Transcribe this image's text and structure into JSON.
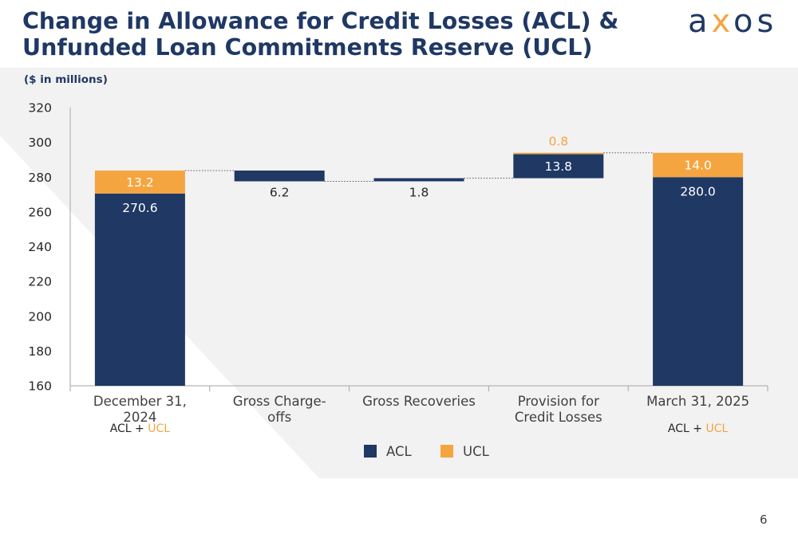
{
  "title": {
    "line1": "Change in Allowance for Credit Losses (ACL) &",
    "line2": "Unfunded Loan Commitments Reserve (UCL)"
  },
  "unit_note": "($ in millions)",
  "logo": {
    "part1": "a",
    "part2": "x",
    "part3": "os"
  },
  "page_number": "6",
  "colors": {
    "acl": "#1f3864",
    "ucl": "#f5a540",
    "title": "#1f3864",
    "background_shape": "#f2f2f2"
  },
  "chart_data": {
    "type": "bar",
    "subtype": "waterfall",
    "categories": [
      [
        "December 31,",
        "2024"
      ],
      [
        "Gross Charge-",
        "offs"
      ],
      [
        "Gross Recoveries"
      ],
      [
        "Provision for",
        "Credit Losses"
      ],
      [
        "March 31, 2025"
      ]
    ],
    "ylim": [
      160,
      320
    ],
    "yticks": [
      160,
      180,
      200,
      220,
      240,
      260,
      280,
      300,
      320
    ],
    "grid": false,
    "legend_position": "bottom",
    "series": [
      {
        "name": "ACL"
      },
      {
        "name": "UCL"
      }
    ],
    "bars": [
      {
        "segments": [
          {
            "series": "ACL",
            "from": 160,
            "to": 270.6,
            "label": "270.6",
            "label_pos": "inside-top"
          },
          {
            "series": "UCL",
            "from": 270.6,
            "to": 283.8,
            "label": "13.2",
            "label_pos": "inside"
          }
        ],
        "note": {
          "text1": "ACL + ",
          "text2": "UCL"
        }
      },
      {
        "segments": [
          {
            "series": "ACL",
            "from": 277.6,
            "to": 283.8,
            "label": "6.2",
            "label_pos": "below"
          }
        ]
      },
      {
        "segments": [
          {
            "series": "ACL",
            "from": 277.6,
            "to": 279.4,
            "label": "1.8",
            "label_pos": "below"
          }
        ]
      },
      {
        "segments": [
          {
            "series": "ACL",
            "from": 279.4,
            "to": 293.2,
            "label": "13.8",
            "label_pos": "inside"
          },
          {
            "series": "UCL",
            "from": 293.2,
            "to": 294.0,
            "label": "0.8",
            "label_pos": "above"
          }
        ]
      },
      {
        "segments": [
          {
            "series": "ACL",
            "from": 160,
            "to": 280.0,
            "label": "280.0",
            "label_pos": "inside-top"
          },
          {
            "series": "UCL",
            "from": 280.0,
            "to": 294.0,
            "label": "14.0",
            "label_pos": "inside"
          }
        ],
        "note": {
          "text1": "ACL + ",
          "text2": "UCL"
        }
      }
    ],
    "connectors": [
      {
        "from_bar": 0,
        "to_bar": 1,
        "value": 283.8
      },
      {
        "from_bar": 1,
        "to_bar": 2,
        "value": 277.6
      },
      {
        "from_bar": 2,
        "to_bar": 3,
        "value": 279.4
      },
      {
        "from_bar": 3,
        "to_bar": 4,
        "value": 294.0
      }
    ]
  }
}
